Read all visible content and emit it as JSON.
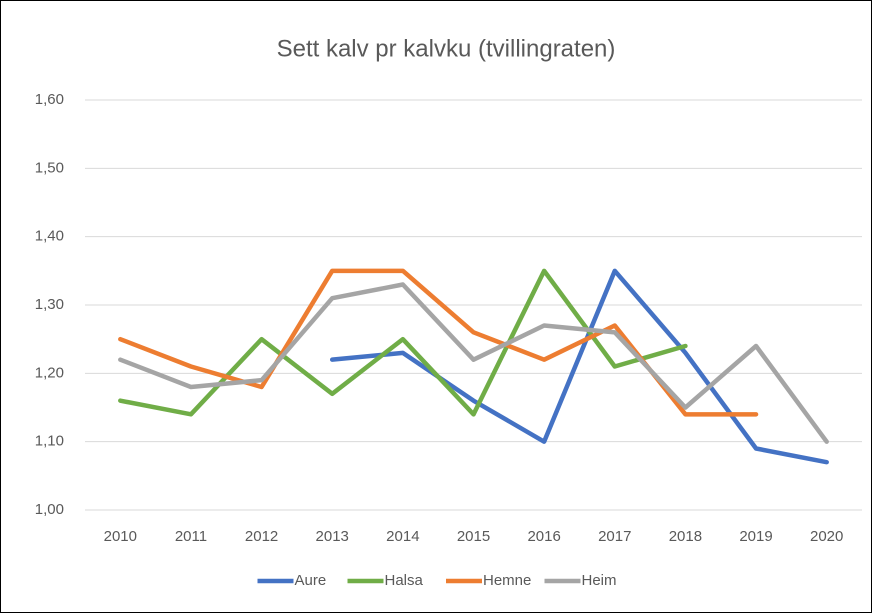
{
  "chart_data": {
    "type": "line",
    "title": "Sett kalv pr kalvku (tvillingraten)",
    "categories": [
      "2010",
      "2011",
      "2012",
      "2013",
      "2014",
      "2015",
      "2016",
      "2017",
      "2018",
      "2019",
      "2020"
    ],
    "series": [
      {
        "name": "Aure",
        "color": "#4472c4",
        "values": [
          null,
          null,
          null,
          1.22,
          1.23,
          1.16,
          1.1,
          1.35,
          1.23,
          1.09,
          1.07
        ]
      },
      {
        "name": "Halsa",
        "color": "#70ad47",
        "values": [
          1.16,
          1.14,
          1.25,
          1.17,
          1.25,
          1.14,
          1.35,
          1.21,
          1.24,
          null,
          null
        ]
      },
      {
        "name": "Hemne",
        "color": "#ed7d31",
        "values": [
          1.25,
          1.21,
          1.18,
          1.35,
          1.35,
          1.26,
          1.22,
          1.27,
          1.14,
          1.14,
          null
        ]
      },
      {
        "name": "Heim",
        "color": "#a5a5a5",
        "values": [
          1.22,
          1.18,
          1.19,
          1.31,
          1.33,
          1.22,
          1.27,
          1.26,
          1.15,
          1.24,
          1.1
        ]
      }
    ],
    "ylim": [
      1.0,
      1.6
    ],
    "yticks": [
      {
        "value": 1.0,
        "label": "1,00"
      },
      {
        "value": 1.1,
        "label": "1,10"
      },
      {
        "value": 1.2,
        "label": "1,20"
      },
      {
        "value": 1.3,
        "label": "1,30"
      },
      {
        "value": 1.4,
        "label": "1,40"
      },
      {
        "value": 1.5,
        "label": "1,50"
      },
      {
        "value": 1.6,
        "label": "1,60"
      }
    ],
    "grid": true,
    "legend": "bottom"
  }
}
